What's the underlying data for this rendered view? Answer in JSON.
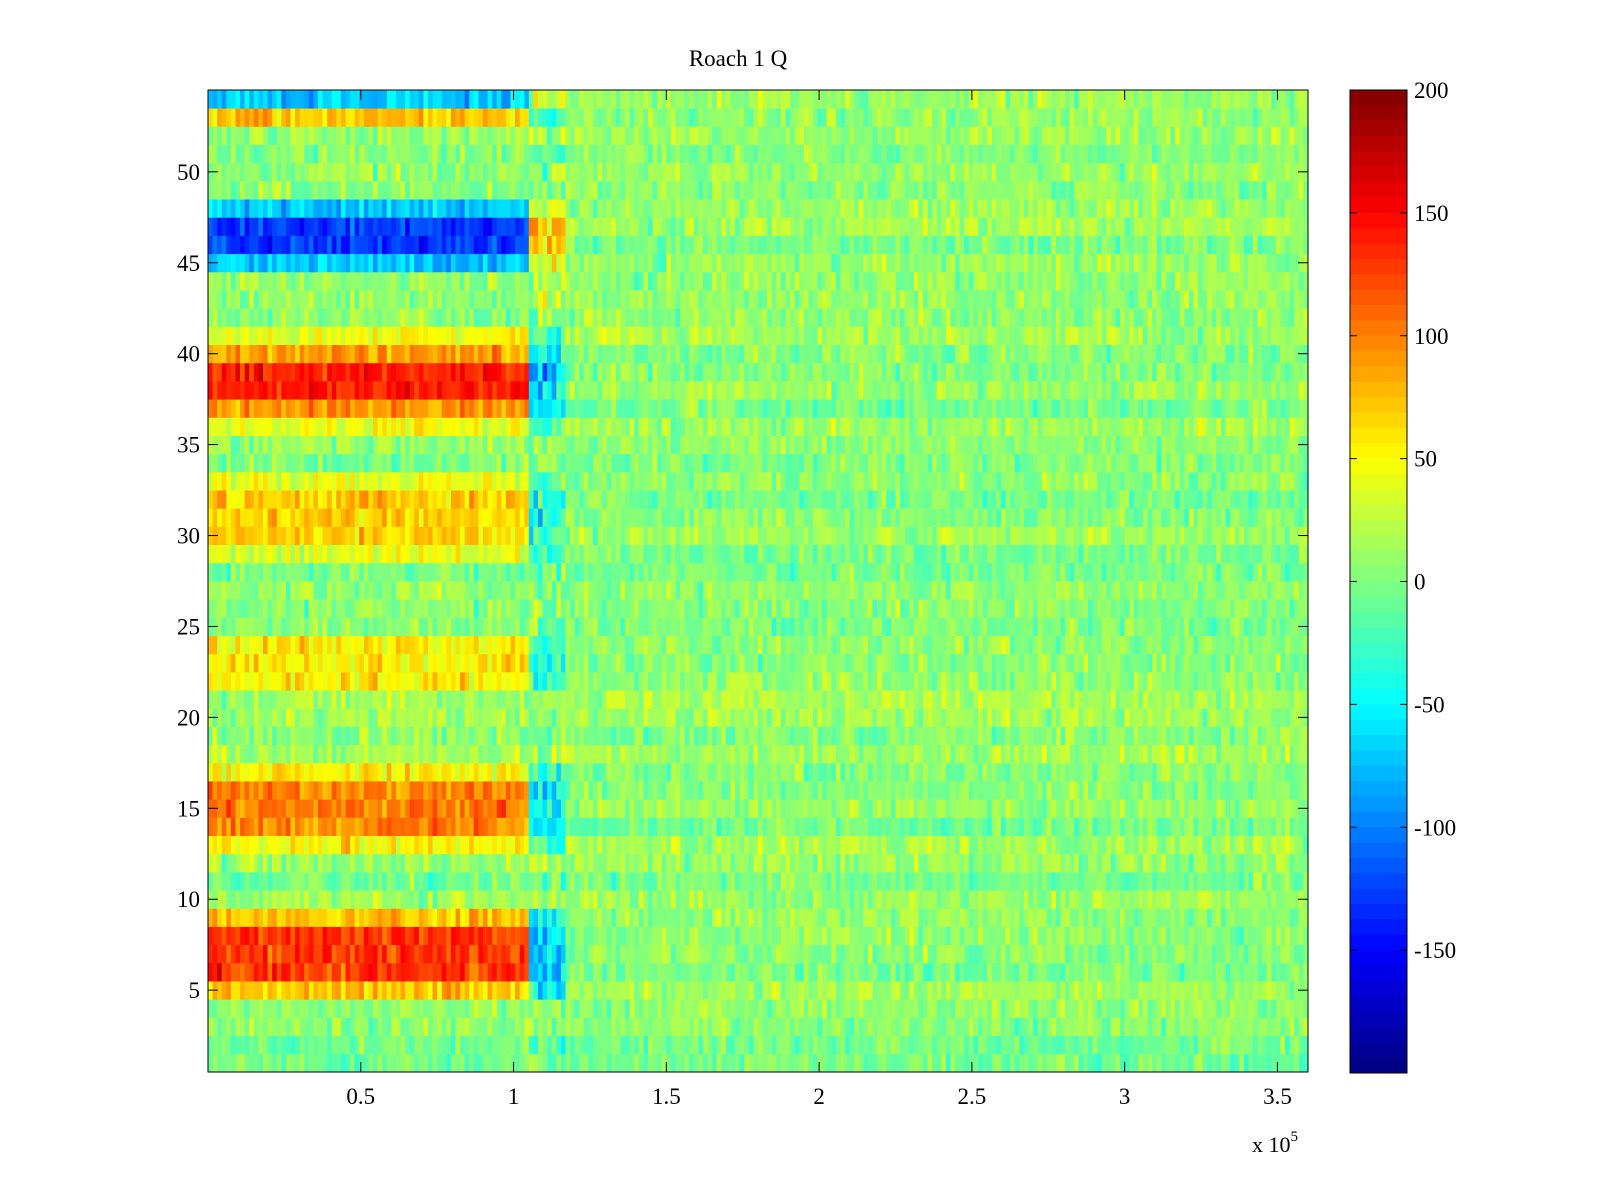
{
  "chart_data": {
    "type": "heatmap",
    "title": "Roach 1 Q",
    "xlabel": "",
    "ylabel": "",
    "x_range": [
      0,
      360000
    ],
    "y_range": [
      0.5,
      54.5
    ],
    "x_ticks": [
      0.5,
      1,
      1.5,
      2,
      2.5,
      3,
      3.5
    ],
    "x_tick_labels": [
      "0.5",
      "1",
      "1.5",
      "2",
      "2.5",
      "3",
      "3.5"
    ],
    "x_exponent_base": "x 10",
    "x_exponent_power": "5",
    "x_scale": 100000,
    "y_ticks": [
      5,
      10,
      15,
      20,
      25,
      30,
      35,
      40,
      45,
      50
    ],
    "y_tick_labels": [
      "5",
      "10",
      "15",
      "20",
      "25",
      "30",
      "35",
      "40",
      "45",
      "50"
    ],
    "rows": 54,
    "transition_x": 105000,
    "colorbar": {
      "colormap": "jet",
      "clim": [
        -200,
        200
      ],
      "ticks": [
        200,
        150,
        100,
        50,
        0,
        -50,
        -100,
        -150
      ],
      "tick_labels": [
        "200",
        "150",
        "100",
        "50",
        "0",
        "-50",
        "-100",
        "-150"
      ]
    },
    "row_levels_before_transition": [
      {
        "rows": [
          6,
          7,
          8
        ],
        "value": 130
      },
      {
        "rows": [
          5,
          9
        ],
        "value": 70
      },
      {
        "rows": [
          14,
          15,
          16
        ],
        "value": 100
      },
      {
        "rows": [
          13,
          17
        ],
        "value": 55
      },
      {
        "rows": [
          22,
          23,
          24
        ],
        "value": 55
      },
      {
        "rows": [
          30,
          31,
          32
        ],
        "value": 70
      },
      {
        "rows": [
          29,
          33
        ],
        "value": 40
      },
      {
        "rows": [
          38,
          39
        ],
        "value": 140
      },
      {
        "rows": [
          37,
          40
        ],
        "value": 90
      },
      {
        "rows": [
          36,
          41
        ],
        "value": 45
      },
      {
        "rows": [
          46,
          47
        ],
        "value": -130
      },
      {
        "rows": [
          45,
          48
        ],
        "value": -70
      },
      {
        "rows": [
          53
        ],
        "value": 70
      },
      {
        "rows": [
          54
        ],
        "value": -70
      }
    ],
    "background_value": 5
  }
}
